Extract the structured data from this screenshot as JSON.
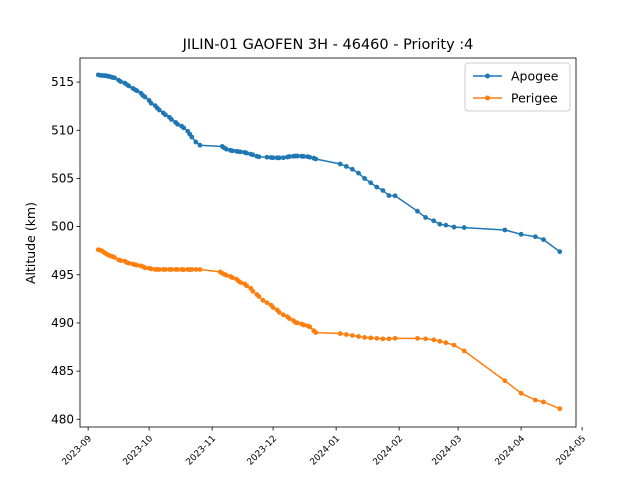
{
  "chart_data": {
    "type": "line",
    "title": "JILIN-01 GAOFEN 3H - 46460 - Priority :4",
    "xlabel": "",
    "ylabel": "Altitude (km)",
    "x_type": "date",
    "xlim": [
      "2023-08-28",
      "2024-04-28"
    ],
    "ylim": [
      479.2,
      517.5
    ],
    "xticks": [
      "2023-09",
      "2023-10",
      "2023-11",
      "2023-12",
      "2024-01",
      "2024-02",
      "2024-03",
      "2024-04",
      "2024-05"
    ],
    "yticks": [
      480,
      485,
      490,
      495,
      500,
      505,
      510,
      515
    ],
    "grid": false,
    "legend_position": "top-right",
    "series": [
      {
        "name": "Apogee",
        "color": "#1f77b4",
        "marker": "circle",
        "x": [
          "2023-09-06",
          "2023-09-07",
          "2023-09-08",
          "2023-09-09",
          "2023-09-10",
          "2023-09-11",
          "2023-09-12",
          "2023-09-13",
          "2023-09-14",
          "2023-09-16",
          "2023-09-17",
          "2023-09-19",
          "2023-09-20",
          "2023-09-21",
          "2023-09-23",
          "2023-09-24",
          "2023-09-25",
          "2023-09-27",
          "2023-09-28",
          "2023-09-29",
          "2023-10-01",
          "2023-10-02",
          "2023-10-04",
          "2023-10-05",
          "2023-10-06",
          "2023-10-08",
          "2023-10-09",
          "2023-10-11",
          "2023-10-12",
          "2023-10-14",
          "2023-10-15",
          "2023-10-17",
          "2023-10-18",
          "2023-10-20",
          "2023-10-21",
          "2023-10-22",
          "2023-10-24",
          "2023-10-26",
          "2023-11-06",
          "2023-11-07",
          "2023-11-08",
          "2023-11-10",
          "2023-11-11",
          "2023-11-13",
          "2023-11-14",
          "2023-11-15",
          "2023-11-17",
          "2023-11-18",
          "2023-11-20",
          "2023-11-21",
          "2023-11-23",
          "2023-11-24",
          "2023-11-28",
          "2023-11-30",
          "2023-12-01",
          "2023-12-03",
          "2023-12-04",
          "2023-12-06",
          "2023-12-08",
          "2023-12-09",
          "2023-12-11",
          "2023-12-12",
          "2023-12-13",
          "2023-12-15",
          "2023-12-16",
          "2023-12-18",
          "2023-12-19",
          "2023-12-21",
          "2023-12-22",
          "2024-01-03",
          "2024-01-06",
          "2024-01-09",
          "2024-01-12",
          "2024-01-15",
          "2024-01-18",
          "2024-01-21",
          "2024-01-24",
          "2024-01-27",
          "2024-01-30",
          "2024-02-10",
          "2024-02-14",
          "2024-02-18",
          "2024-02-21",
          "2024-02-24",
          "2024-02-28",
          "2024-03-04",
          "2024-03-24",
          "2024-04-01",
          "2024-04-08",
          "2024-04-12",
          "2024-04-20"
        ],
        "y": [
          515.75,
          515.7,
          515.68,
          515.67,
          515.65,
          515.6,
          515.55,
          515.48,
          515.44,
          515.2,
          515.05,
          514.9,
          514.75,
          514.6,
          514.35,
          514.22,
          514.1,
          513.85,
          513.6,
          513.45,
          513.1,
          512.8,
          512.55,
          512.3,
          512.1,
          511.8,
          511.6,
          511.35,
          511.12,
          510.82,
          510.62,
          510.42,
          510.25,
          509.9,
          509.6,
          509.3,
          508.78,
          508.45,
          508.32,
          508.17,
          508.03,
          507.92,
          507.87,
          507.82,
          507.78,
          507.76,
          507.7,
          507.63,
          507.52,
          507.45,
          507.3,
          507.25,
          507.2,
          507.17,
          507.15,
          507.14,
          507.14,
          507.15,
          507.22,
          507.27,
          507.3,
          507.32,
          507.32,
          507.31,
          507.28,
          507.26,
          507.2,
          507.1,
          507.02,
          506.5,
          506.25,
          505.95,
          505.55,
          505.0,
          504.55,
          504.1,
          503.75,
          503.22,
          503.2,
          501.6,
          500.95,
          500.6,
          500.25,
          500.15,
          499.95,
          499.9,
          499.65,
          499.2,
          498.95,
          498.65,
          497.4
        ]
      },
      {
        "name": "Perigee",
        "color": "#ff7f0e",
        "marker": "circle",
        "x": [
          "2023-09-06",
          "2023-09-07",
          "2023-09-08",
          "2023-09-09",
          "2023-09-10",
          "2023-09-11",
          "2023-09-12",
          "2023-09-13",
          "2023-09-14",
          "2023-09-16",
          "2023-09-17",
          "2023-09-19",
          "2023-09-20",
          "2023-09-21",
          "2023-09-23",
          "2023-09-24",
          "2023-09-25",
          "2023-09-27",
          "2023-09-28",
          "2023-09-29",
          "2023-10-01",
          "2023-10-02",
          "2023-10-04",
          "2023-10-05",
          "2023-10-06",
          "2023-10-08",
          "2023-10-09",
          "2023-10-11",
          "2023-10-12",
          "2023-10-14",
          "2023-10-15",
          "2023-10-17",
          "2023-10-18",
          "2023-10-20",
          "2023-10-21",
          "2023-10-22",
          "2023-10-24",
          "2023-10-26",
          "2023-11-05",
          "2023-11-06",
          "2023-11-07",
          "2023-11-08",
          "2023-11-10",
          "2023-11-11",
          "2023-11-13",
          "2023-11-14",
          "2023-11-15",
          "2023-11-17",
          "2023-11-18",
          "2023-11-20",
          "2023-11-21",
          "2023-11-23",
          "2023-11-24",
          "2023-11-26",
          "2023-11-28",
          "2023-11-30",
          "2023-12-01",
          "2023-12-03",
          "2023-12-04",
          "2023-12-06",
          "2023-12-08",
          "2023-12-09",
          "2023-12-11",
          "2023-12-12",
          "2023-12-13",
          "2023-12-15",
          "2023-12-16",
          "2023-12-18",
          "2023-12-19",
          "2023-12-21",
          "2023-12-22",
          "2024-01-03",
          "2024-01-06",
          "2024-01-09",
          "2024-01-12",
          "2024-01-15",
          "2024-01-18",
          "2024-01-21",
          "2024-01-24",
          "2024-01-27",
          "2024-01-30",
          "2024-02-10",
          "2024-02-14",
          "2024-02-18",
          "2024-02-21",
          "2024-02-24",
          "2024-02-28",
          "2024-03-04",
          "2024-03-24",
          "2024-04-01",
          "2024-04-08",
          "2024-04-12",
          "2024-04-20"
        ],
        "y": [
          497.6,
          497.55,
          497.45,
          497.3,
          497.15,
          497.05,
          496.95,
          496.9,
          496.8,
          496.55,
          496.48,
          496.42,
          496.28,
          496.2,
          496.12,
          496.05,
          496.0,
          495.92,
          495.85,
          495.72,
          495.68,
          495.62,
          495.55,
          495.55,
          495.55,
          495.55,
          495.55,
          495.55,
          495.55,
          495.55,
          495.55,
          495.55,
          495.53,
          495.55,
          495.53,
          495.55,
          495.55,
          495.55,
          495.3,
          495.15,
          495.05,
          494.95,
          494.82,
          494.7,
          494.55,
          494.35,
          494.2,
          494.05,
          493.85,
          493.6,
          493.3,
          492.95,
          492.75,
          492.35,
          492.1,
          491.85,
          491.6,
          491.35,
          491.1,
          490.85,
          490.65,
          490.45,
          490.25,
          490.05,
          490.0,
          489.9,
          489.8,
          489.7,
          489.6,
          489.2,
          489.0,
          488.9,
          488.8,
          488.7,
          488.6,
          488.5,
          488.45,
          488.4,
          488.35,
          488.35,
          488.4,
          488.4,
          488.35,
          488.25,
          488.1,
          487.95,
          487.7,
          487.1,
          484.0,
          482.7,
          482.0,
          481.8,
          481.1
        ]
      }
    ]
  }
}
